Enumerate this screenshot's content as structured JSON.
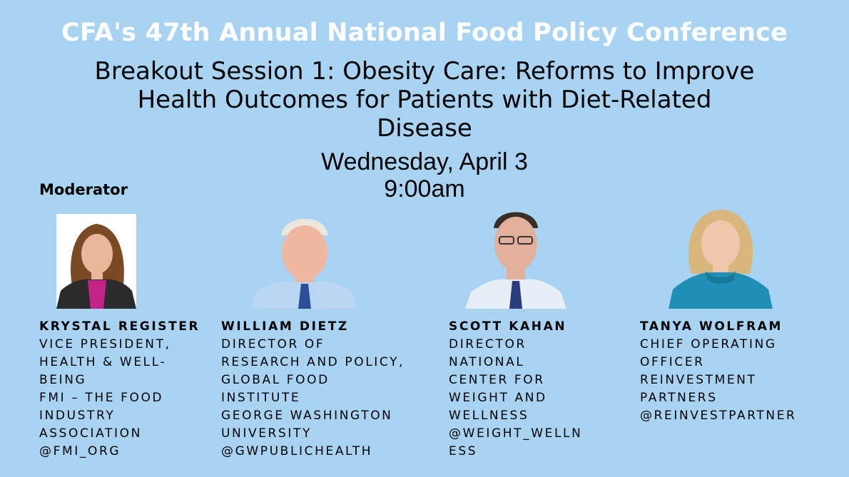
{
  "header": {
    "conference_title": "CFA's 47th Annual National Food Policy Conference",
    "session_title_lines": [
      "Breakout Session 1: Obesity Care: Reforms to Improve",
      "Health Outcomes for Patients with Diet-Related",
      "Disease"
    ],
    "date": "Wednesday, April 3",
    "time": "9:00am"
  },
  "moderator_label": "Moderator",
  "speakers": [
    {
      "name": "KRYSTAL REGISTER",
      "info_lines": [
        "VICE PRESIDENT,",
        "HEALTH & WELL-",
        "BEING",
        "FMI – THE FOOD",
        "INDUSTRY",
        "ASSOCIATION",
        "@FMI_ORG"
      ],
      "colors": {
        "bg": "#ffffff",
        "hair": "#7a4a24",
        "skin": "#e9b79a",
        "top": "#c4248a",
        "jacket": "#2b2b2b"
      }
    },
    {
      "name": "WILLIAM DIETZ",
      "info_lines": [
        "DIRECTOR OF",
        "RESEARCH AND POLICY,",
        "GLOBAL FOOD",
        "INSTITUTE",
        "GEORGE WASHINGTON",
        "UNIVERSITY",
        "@GWPUBLICHEALTH"
      ],
      "colors": {
        "bg": "#d9dde3",
        "hair": "#ece7dc",
        "skin": "#f0b7a0",
        "top": "#b9d7f2",
        "tie": "#2c4f9a"
      }
    },
    {
      "name": "SCOTT KAHAN",
      "info_lines": [
        "DIRECTOR",
        "NATIONAL",
        "CENTER FOR",
        "WEIGHT AND",
        "WELLNESS",
        "@WEIGHT_WELLN",
        "ESS"
      ],
      "colors": {
        "bg": "#c9ccd2",
        "hair": "#3a2e28",
        "skin": "#e2b09a",
        "top": "#e8eef6",
        "tie": "#2a3d7c"
      }
    },
    {
      "name": "TANYA WOLFRAM",
      "info_lines": [
        "CHIEF OPERATING",
        "OFFICER",
        "REINVESTMENT",
        "PARTNERS",
        "@REINVESTPARTNER"
      ],
      "colors": {
        "bg": "#dfe6ee",
        "hair": "#d9b77c",
        "skin": "#f1c6ad",
        "top": "#1f8fb5"
      }
    }
  ]
}
